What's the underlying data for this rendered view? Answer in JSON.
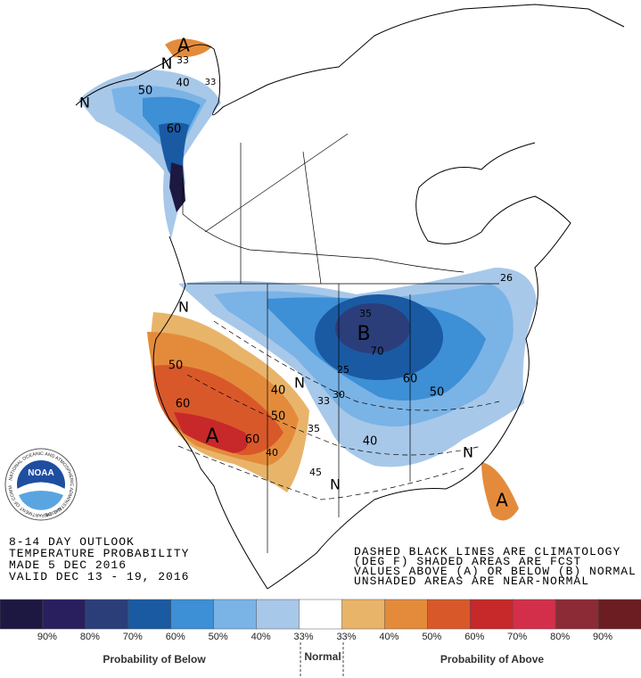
{
  "title_block": [
    "8-14 DAY OUTLOOK",
    "TEMPERATURE PROBABILITY",
    "MADE  5 DEC 2016",
    "VALID  DEC 13 - 19, 2016"
  ],
  "notes": [
    "DASHED BLACK LINES ARE CLIMATOLOGY",
    "(DEG F) SHADED AREAS ARE FCST",
    "VALUES ABOVE (A) OR BELOW (B) NORMAL",
    "UNSHADED AREAS ARE NEAR-NORMAL"
  ],
  "logo": {
    "name": "NOAA",
    "ring_top": "NATIONAL OCEANIC AND ATMOSPHERIC ADMINISTRATION",
    "ring_bottom": "U.S. DEPARTMENT OF COMMERCE"
  },
  "map_labels": [
    "A",
    "33",
    "N",
    "40",
    "33",
    "50",
    "N",
    "60",
    "N",
    "50",
    "60",
    "A",
    "40",
    "N",
    "50",
    "60",
    "40",
    "35",
    "45",
    "N",
    "33",
    "30",
    "25",
    "B",
    "35",
    "70",
    "60",
    "50",
    "40",
    "N",
    "A",
    "26"
  ],
  "legend": {
    "colors": [
      "#1d1842",
      "#2a1f5e",
      "#2b3e7a",
      "#1a5aa3",
      "#3d8fd6",
      "#7ab3e6",
      "#a8c8e9",
      "#ffffff",
      "#e8b46a",
      "#e48b3b",
      "#d9582a",
      "#c7282a",
      "#d42f4a",
      "#8c2b35",
      "#6b1d22"
    ],
    "labels": [
      "90%",
      "80%",
      "70%",
      "60%",
      "50%",
      "40%",
      "33%",
      "33%",
      "40%",
      "50%",
      "60%",
      "70%",
      "80%",
      "90%"
    ],
    "below": "Probability of Below",
    "normal": "Normal",
    "above": "Probability of Above"
  }
}
